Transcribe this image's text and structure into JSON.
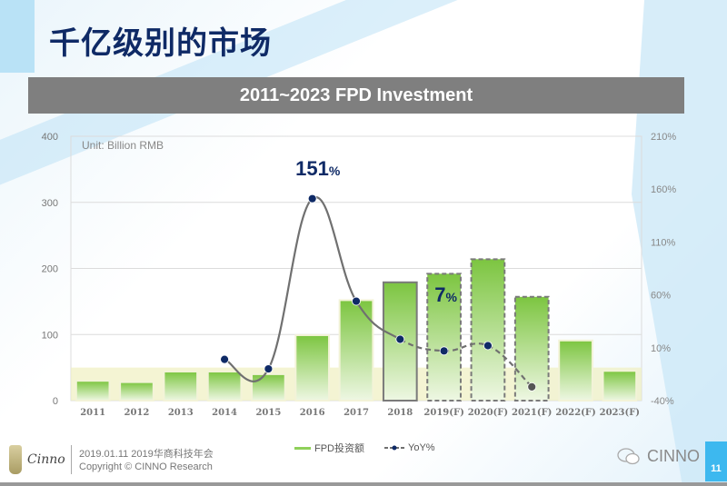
{
  "slide": {
    "title": "千亿级别的市场",
    "page_number": "11"
  },
  "banner": {
    "text": "2011~2023 FPD Investment"
  },
  "footer": {
    "logo_text": "Cinno",
    "date_event": "2019.01.11  2019华商科技年会",
    "copyright": "Copyright © CINNO Research",
    "wechat_label": "CINNO"
  },
  "legend": {
    "bar_label": "FPD投资额",
    "line_label": "YoY%"
  },
  "annotations": {
    "peak": "151",
    "peak_unit": "%",
    "f2019": "7",
    "f2019_unit": "%"
  },
  "colors": {
    "bar_top": "#7cc540",
    "bar_bottom": "#eef7e3",
    "line": "#707070",
    "marker": "#0f2a66",
    "title": "#0f2a66",
    "banner": "#7f7f7f",
    "highlight_band": "#f0f0c0"
  },
  "chart_data": {
    "type": "bar+line",
    "title": "2011~2023 FPD Investment",
    "unit_note": "Unit: Billion RMB",
    "categories": [
      "2011",
      "2012",
      "2013",
      "2014",
      "2015",
      "2016",
      "2017",
      "2018",
      "2019(F)",
      "2020(F)",
      "2021(F)",
      "2022(F)",
      "2023(F)"
    ],
    "series": [
      {
        "name": "FPD投资额",
        "type": "bar",
        "axis": "left",
        "values": [
          30,
          28,
          44,
          44,
          40,
          99,
          152,
          179,
          192,
          214,
          157,
          91,
          45
        ]
      },
      {
        "name": "YoY%",
        "type": "line",
        "axis": "right",
        "values": [
          null,
          null,
          null,
          -1,
          -10,
          151,
          54,
          18,
          7,
          12,
          -27,
          null,
          null
        ]
      }
    ],
    "bar_styles": [
      "solid",
      "solid",
      "solid",
      "solid",
      "solid",
      "solid",
      "solid",
      "dark-outline",
      "dashed",
      "dashed",
      "dashed",
      "solid",
      "solid"
    ],
    "left_axis": {
      "ticks": [
        "0",
        "100",
        "200",
        "300",
        "400"
      ],
      "ylim": [
        0,
        400
      ]
    },
    "right_axis": {
      "ticks": [
        "-40%",
        "10%",
        "60%",
        "110%",
        "160%",
        "210%"
      ],
      "ylim": [
        -40,
        210
      ]
    },
    "grid": true,
    "legend_position": "bottom"
  }
}
